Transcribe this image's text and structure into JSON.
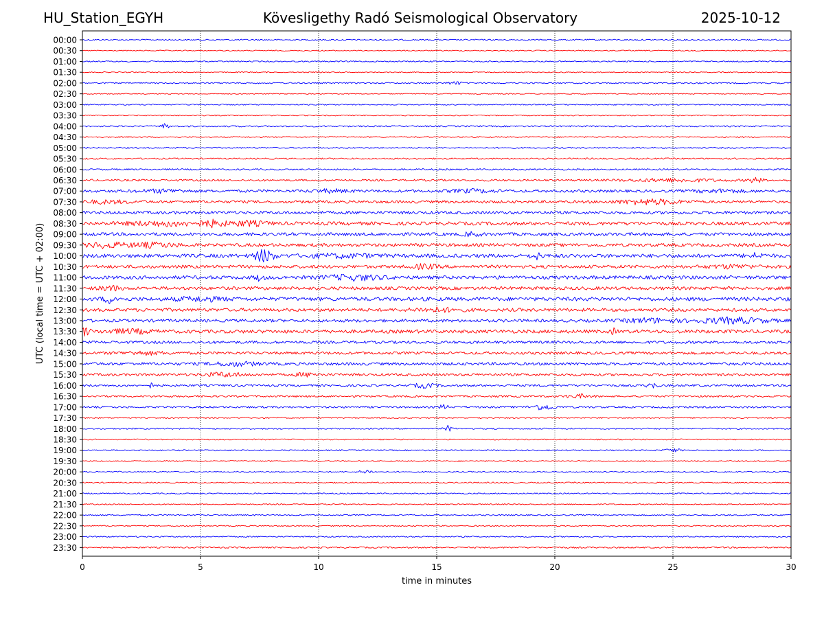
{
  "chart_data": {
    "type": "line",
    "title": "Kövesligethy Radó Seismological Observatory",
    "station": "HU_Station_EGYH",
    "date": "2025-10-12",
    "xlabel": "time in minutes",
    "ylabel": "UTC (local time = UTC + 02:00)",
    "xlim": [
      0,
      30
    ],
    "x_ticks": [
      0,
      5,
      10,
      15,
      20,
      25,
      30
    ],
    "vertical_gridlines": [
      5,
      10,
      15,
      20,
      25
    ],
    "trace_colors": [
      "#0000ff",
      "#ff0000"
    ],
    "rows": [
      {
        "label": "00:00",
        "noise": 1.0
      },
      {
        "label": "00:30",
        "noise": 0.8
      },
      {
        "label": "01:00",
        "noise": 1.0
      },
      {
        "label": "01:30",
        "noise": 0.8
      },
      {
        "label": "02:00",
        "noise": 1.1,
        "bursts": [
          [
            15.8,
            0.3,
            2.5
          ]
        ]
      },
      {
        "label": "02:30",
        "noise": 0.8
      },
      {
        "label": "03:00",
        "noise": 1.0
      },
      {
        "label": "03:30",
        "noise": 0.9
      },
      {
        "label": "04:00",
        "noise": 1.2,
        "bursts": [
          [
            3.5,
            0.15,
            4
          ]
        ]
      },
      {
        "label": "04:30",
        "noise": 1.0
      },
      {
        "label": "05:00",
        "noise": 1.1
      },
      {
        "label": "05:30",
        "noise": 1.2
      },
      {
        "label": "06:00",
        "noise": 1.3
      },
      {
        "label": "06:30",
        "noise": 1.6,
        "bursts": [
          [
            25.0,
            2.0,
            2.0
          ],
          [
            28.5,
            0.3,
            3.5
          ]
        ]
      },
      {
        "label": "07:00",
        "noise": 2.2,
        "bursts": [
          [
            3.5,
            1.0,
            2.0
          ],
          [
            10.5,
            0.8,
            2.0
          ],
          [
            16.5,
            1.0,
            2.0
          ],
          [
            27.0,
            1.0,
            2.0
          ]
        ]
      },
      {
        "label": "07:30",
        "noise": 2.2,
        "bursts": [
          [
            1.0,
            1.0,
            2.0
          ],
          [
            24.0,
            1.3,
            3.5
          ]
        ]
      },
      {
        "label": "08:00",
        "noise": 2.4
      },
      {
        "label": "08:30",
        "noise": 2.8,
        "bursts": [
          [
            3.5,
            1.5,
            3.0
          ],
          [
            5.5,
            0.5,
            4.0
          ],
          [
            7.0,
            0.8,
            3.0
          ]
        ]
      },
      {
        "label": "09:00",
        "noise": 2.6,
        "bursts": [
          [
            16.5,
            0.3,
            3.0
          ]
        ]
      },
      {
        "label": "09:30",
        "noise": 2.6,
        "bursts": [
          [
            1.0,
            0.8,
            3.5
          ],
          [
            3.0,
            1.0,
            3.0
          ]
        ]
      },
      {
        "label": "10:00",
        "noise": 3.0,
        "bursts": [
          [
            7.7,
            0.4,
            9.0
          ],
          [
            11.0,
            1.5,
            2.0
          ],
          [
            19.2,
            0.2,
            5.0
          ],
          [
            28.5,
            0.4,
            3.0
          ]
        ]
      },
      {
        "label": "10:30",
        "noise": 2.6,
        "bursts": [
          [
            14.5,
            0.5,
            3.0
          ],
          [
            27.5,
            1.0,
            2.0
          ]
        ]
      },
      {
        "label": "11:00",
        "noise": 2.8,
        "bursts": [
          [
            7.5,
            0.2,
            4.0
          ],
          [
            11.5,
            1.2,
            3.5
          ]
        ]
      },
      {
        "label": "11:30",
        "noise": 2.6,
        "bursts": [
          [
            1.2,
            0.4,
            3.5
          ]
        ]
      },
      {
        "label": "12:00",
        "noise": 3.0,
        "bursts": [
          [
            1.2,
            0.3,
            5.0
          ],
          [
            5.0,
            1.0,
            2.5
          ]
        ]
      },
      {
        "label": "12:30",
        "noise": 2.6,
        "bursts": [
          [
            15.0,
            1.0,
            2.5
          ]
        ]
      },
      {
        "label": "13:00",
        "noise": 2.4,
        "bursts": [
          [
            24.0,
            1.0,
            3.0
          ],
          [
            27.5,
            1.5,
            4.0
          ]
        ]
      },
      {
        "label": "13:30",
        "noise": 2.8,
        "bursts": [
          [
            0.1,
            0.2,
            6.0
          ],
          [
            2.0,
            1.0,
            2.5
          ],
          [
            22.5,
            0.1,
            4.0
          ]
        ]
      },
      {
        "label": "14:00",
        "noise": 2.2
      },
      {
        "label": "14:30",
        "noise": 2.2,
        "bursts": [
          [
            2.5,
            1.0,
            2.0
          ]
        ]
      },
      {
        "label": "15:00",
        "noise": 2.3,
        "bursts": [
          [
            6.5,
            1.0,
            2.5
          ]
        ]
      },
      {
        "label": "15:30",
        "noise": 2.0,
        "bursts": [
          [
            6.0,
            0.8,
            3.0
          ],
          [
            9.5,
            0.5,
            2.5
          ]
        ]
      },
      {
        "label": "16:00",
        "noise": 1.8,
        "bursts": [
          [
            2.9,
            0.1,
            3.5
          ],
          [
            14.5,
            0.5,
            3.0
          ],
          [
            24.1,
            0.2,
            4.0
          ]
        ]
      },
      {
        "label": "16:30",
        "noise": 1.6,
        "bursts": [
          [
            21.0,
            0.5,
            2.5
          ]
        ]
      },
      {
        "label": "17:00",
        "noise": 1.6,
        "bursts": [
          [
            19.5,
            0.5,
            4.0
          ],
          [
            15.3,
            0.2,
            3.0
          ]
        ]
      },
      {
        "label": "17:30",
        "noise": 1.1
      },
      {
        "label": "18:00",
        "noise": 1.2,
        "bursts": [
          [
            15.5,
            0.15,
            4.5
          ]
        ]
      },
      {
        "label": "18:30",
        "noise": 1.0
      },
      {
        "label": "19:00",
        "noise": 1.1,
        "bursts": [
          [
            25.0,
            0.3,
            2.5
          ]
        ]
      },
      {
        "label": "19:30",
        "noise": 1.0
      },
      {
        "label": "20:00",
        "noise": 1.1,
        "bursts": [
          [
            12.0,
            0.3,
            2.5
          ]
        ]
      },
      {
        "label": "20:30",
        "noise": 1.0
      },
      {
        "label": "21:00",
        "noise": 1.0
      },
      {
        "label": "21:30",
        "noise": 0.9
      },
      {
        "label": "22:00",
        "noise": 1.0
      },
      {
        "label": "22:30",
        "noise": 0.9
      },
      {
        "label": "23:00",
        "noise": 1.0
      },
      {
        "label": "23:30",
        "noise": 1.2
      }
    ]
  }
}
